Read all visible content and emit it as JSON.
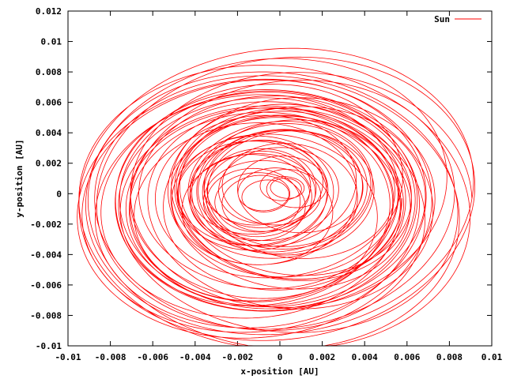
{
  "chart_data": {
    "type": "line",
    "title": "",
    "xlabel": "x-position [AU]",
    "ylabel": "y-position [AU]",
    "xlim": [
      -0.01,
      0.01
    ],
    "ylim": [
      -0.01,
      0.012
    ],
    "x_ticks": [
      "-0.01",
      "-0.008",
      "-0.006",
      "-0.004",
      "-0.002",
      "0",
      "0.002",
      "0.004",
      "0.006",
      "0.008",
      "0.01"
    ],
    "y_ticks": [
      "-0.01",
      "-0.008",
      "-0.006",
      "-0.004",
      "-0.002",
      "0",
      "0.002",
      "0.004",
      "0.006",
      "0.008",
      "0.01",
      "0.012"
    ],
    "grid": false,
    "legend_position": "top-right",
    "series": [
      {
        "name": "Sun",
        "color": "#ff0000",
        "trace": {
          "x_center": -0.0003,
          "y_center": -0.0003,
          "x_amplitude_max": 0.0096,
          "y_amplitude_max": 0.0098,
          "x_amplitude_min": 0.0004,
          "y_amplitude_min": 0.0003,
          "loops": 60
        }
      }
    ]
  }
}
